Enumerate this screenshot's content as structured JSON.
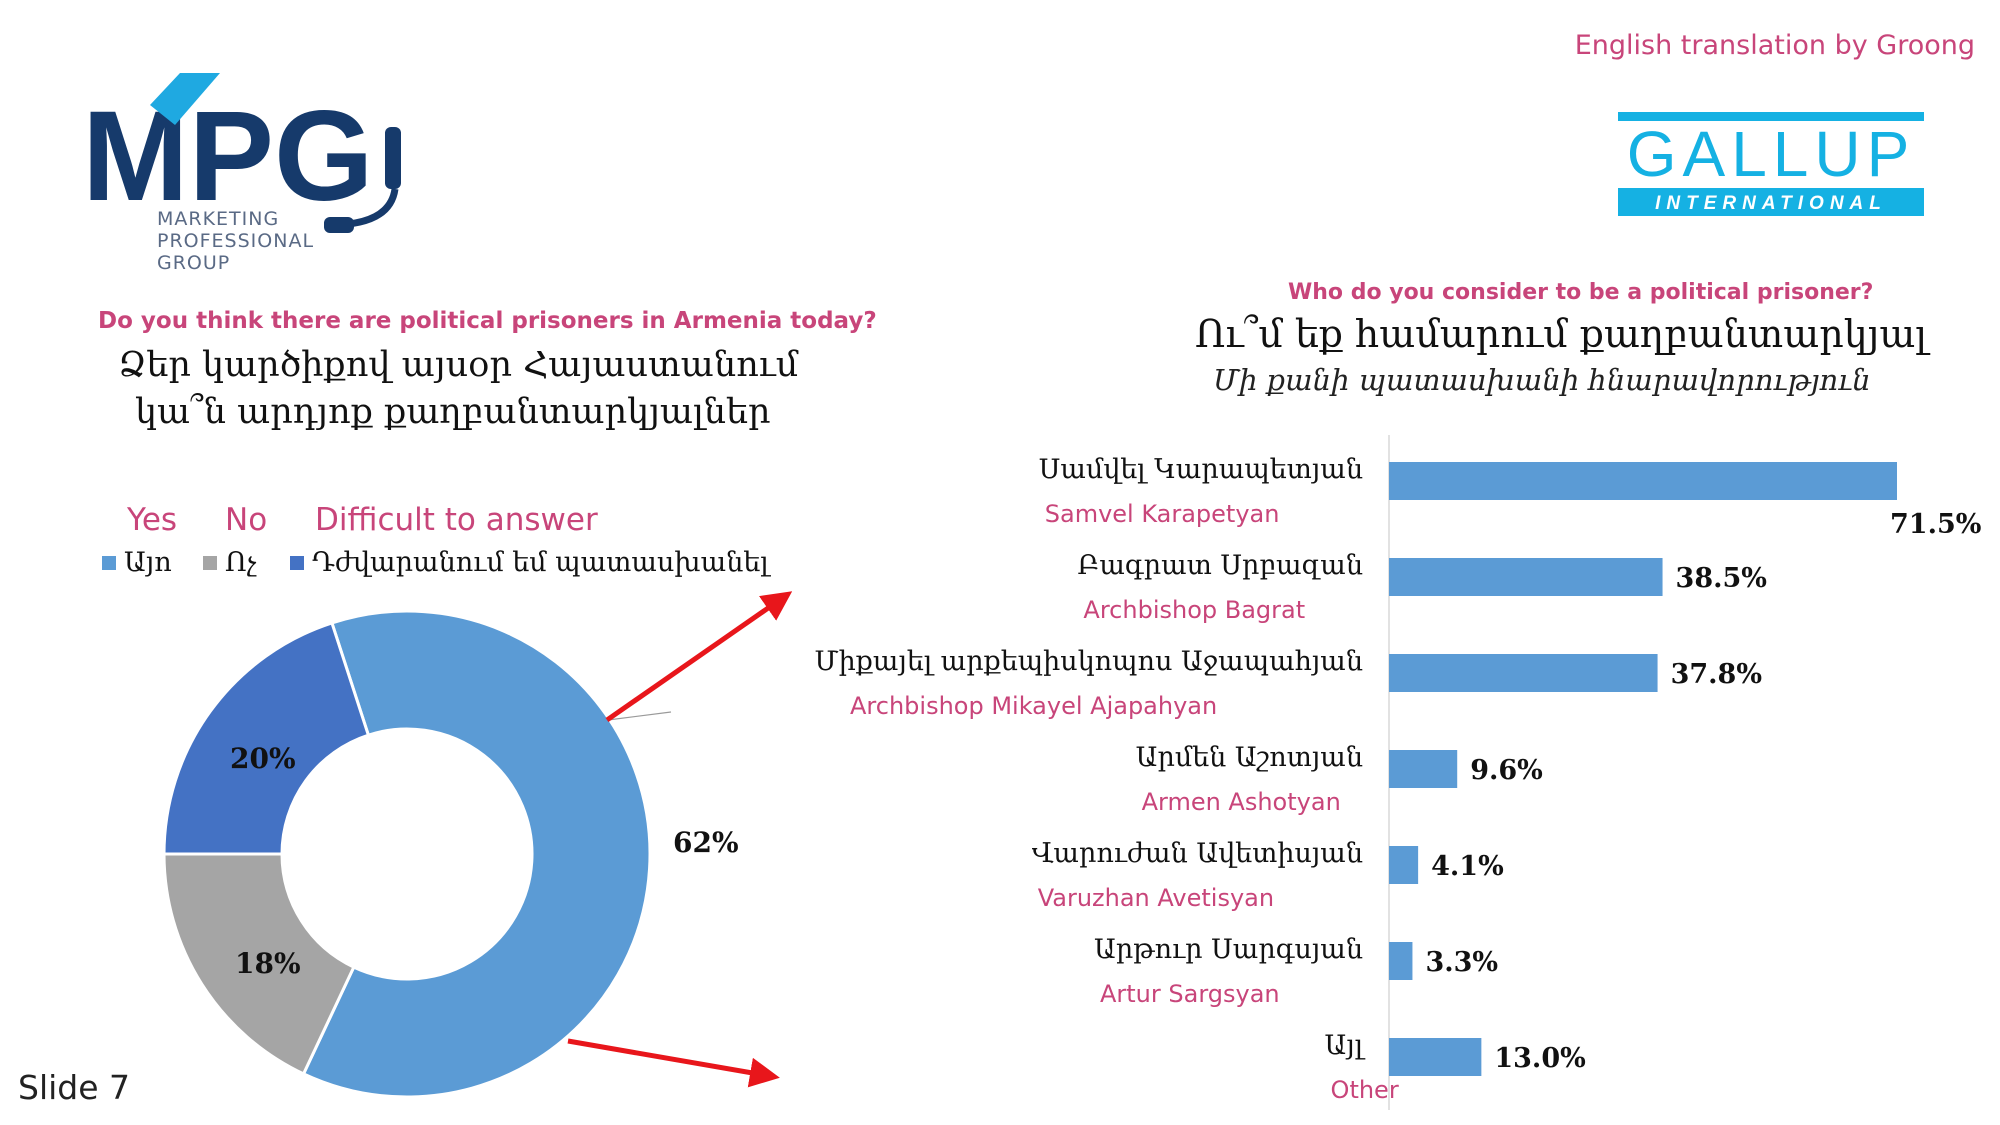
{
  "header": {
    "credit": "English translation by Groong",
    "slide_label": "Slide 7"
  },
  "logos": {
    "mpg": {
      "text": "MPG",
      "subtitle_lines": [
        "MARKETING",
        "PROFESSIONAL",
        "GROUP"
      ]
    },
    "gallup": {
      "text": "GALLUP",
      "sub": "INTERNATIONAL"
    }
  },
  "left_question": {
    "english": "Do you think there are political prisoners in Armenia today?",
    "armenian_line1": "Ձեր կարծիքով այսօր Հայաստանում",
    "armenian_line2": "կա՞ն արդյոք քաղբանտարկյալներ"
  },
  "legend": {
    "en": [
      "Yes",
      "No",
      "Difficult to answer"
    ],
    "am": [
      "Այո",
      "Ոչ",
      "Դժվարանում եմ պատասխանել"
    ]
  },
  "right_question": {
    "english": "Who do you consider to be a political prisoner?",
    "armenian": "Ու՞մ եք համարում քաղբանտարկյալ",
    "subtitle": "Մի քանի պատասխանի հնարավորություն"
  },
  "colors": {
    "yes": "#5b9bd5",
    "no": "#a5a5a5",
    "difficult": "#4472c4",
    "bar": "#5b9bd5",
    "pink": "#c8457a",
    "arrow": "#e8161b",
    "mpg_navy": "#163a6b",
    "mpg_cyan": "#1fa9e1",
    "gallup_cyan": "#15b1e3"
  },
  "chart_data": [
    {
      "type": "pie",
      "variant": "donut",
      "categories": [
        "Yes",
        "No",
        "Difficult to answer"
      ],
      "values": [
        62,
        18,
        20
      ],
      "data_labels": [
        "62%",
        "18%",
        "20%"
      ]
    },
    {
      "type": "bar",
      "orientation": "horizontal",
      "categories_am": [
        "Սամվել Կարապետյան",
        "Բագրատ Սրբազան",
        "Միքայել արքեպիսկոպոս Աջապահյան",
        "Արմեն Աշոտյան",
        "Վարուժան Ավետիսյան",
        "Արթուր Սարգսյան",
        "Այլ"
      ],
      "categories_en": [
        "Samvel Karapetyan",
        "Archbishop Bagrat",
        "Archbishop Mikayel Ajapahyan",
        "Armen Ashotyan",
        "Varuzhan Avetisyan",
        "Artur Sargsyan",
        "Other"
      ],
      "values": [
        71.5,
        38.5,
        37.8,
        9.6,
        4.1,
        3.3,
        13.0
      ],
      "data_labels": [
        "71.5%",
        "38.5%",
        "37.8%",
        "9.6%",
        "4.1%",
        "3.3%",
        "13.0%"
      ],
      "xlim": [
        0,
        71.5
      ]
    }
  ]
}
